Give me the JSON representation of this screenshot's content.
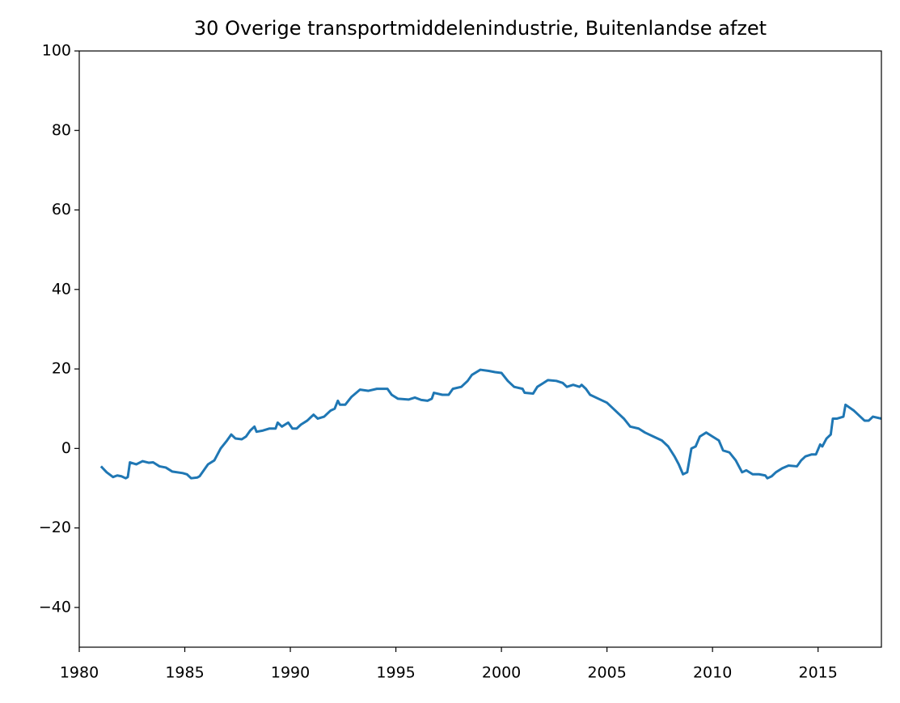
{
  "chart_data": {
    "type": "line",
    "title": "30 Overige transportmiddelenindustrie, Buitenlandse afzet",
    "x": [
      1981.03,
      1981.3,
      1981.6,
      1981.8,
      1982.0,
      1982.2,
      1982.3,
      1982.4,
      1982.7,
      1983.0,
      1983.3,
      1983.5,
      1983.8,
      1984.1,
      1984.4,
      1984.9,
      1985.1,
      1985.3,
      1985.6,
      1985.7,
      1985.9,
      1986.1,
      1986.4,
      1986.7,
      1987.0,
      1987.2,
      1987.4,
      1987.7,
      1987.9,
      1988.1,
      1988.3,
      1988.4,
      1988.7,
      1989.0,
      1989.3,
      1989.4,
      1989.6,
      1989.9,
      1990.1,
      1990.3,
      1990.5,
      1990.8,
      1991.0,
      1991.1,
      1991.3,
      1991.6,
      1991.9,
      1992.1,
      1992.25,
      1992.35,
      1992.6,
      1992.9,
      1993.3,
      1993.7,
      1994.1,
      1994.6,
      1994.8,
      1995.1,
      1995.6,
      1995.9,
      1996.2,
      1996.5,
      1996.7,
      1996.8,
      1997.2,
      1997.5,
      1997.7,
      1998.1,
      1998.4,
      1998.6,
      1999.0,
      1999.4,
      1999.7,
      2000.0,
      2000.3,
      2000.6,
      2001.0,
      2001.1,
      2001.5,
      2001.7,
      2002.0,
      2002.2,
      2002.6,
      2002.9,
      2003.1,
      2003.4,
      2003.7,
      2003.8,
      2004.0,
      2004.2,
      2004.6,
      2005.0,
      2005.3,
      2005.6,
      2005.8,
      2006.1,
      2006.5,
      2006.8,
      2007.2,
      2007.6,
      2007.9,
      2008.2,
      2008.4,
      2008.6,
      2008.8,
      2009.0,
      2009.2,
      2009.4,
      2009.7,
      2010.0,
      2010.3,
      2010.5,
      2010.8,
      2011.1,
      2011.4,
      2011.6,
      2011.9,
      2012.2,
      2012.5,
      2012.6,
      2012.8,
      2013.0,
      2013.3,
      2013.6,
      2014.0,
      2014.2,
      2014.4,
      2014.7,
      2014.9,
      2015.1,
      2015.2,
      2015.4,
      2015.6,
      2015.7,
      2015.9,
      2016.2,
      2016.3,
      2016.7,
      2016.9,
      2017.2,
      2017.4,
      2017.6,
      2018.0
    ],
    "series": [
      {
        "color": "#1f77b4",
        "values": [
          -4.5,
          -6,
          -7.2,
          -6.8,
          -7,
          -7.5,
          -7.2,
          -3.5,
          -4,
          -3.2,
          -3.6,
          -3.5,
          -4.5,
          -4.8,
          -5.8,
          -6.2,
          -6.5,
          -7.5,
          -7.3,
          -7,
          -5.5,
          -4,
          -3,
          0,
          2,
          3.5,
          2.5,
          2.3,
          3,
          4.5,
          5.5,
          4.2,
          4.5,
          5,
          5,
          6.5,
          5.5,
          6.5,
          5,
          5,
          6,
          7,
          8,
          8.5,
          7.5,
          8,
          9.5,
          10,
          12,
          11,
          11,
          13,
          14.8,
          14.5,
          15,
          15,
          13.5,
          12.5,
          12.3,
          12.8,
          12.2,
          12,
          12.5,
          14,
          13.5,
          13.5,
          15,
          15.5,
          17,
          18.5,
          19.8,
          19.5,
          19.2,
          19,
          17,
          15.5,
          15,
          14,
          13.8,
          15.5,
          16.5,
          17.2,
          17,
          16.5,
          15.5,
          16,
          15.5,
          16,
          15,
          13.5,
          12.5,
          11.5,
          10,
          8.5,
          7.5,
          5.5,
          5,
          4,
          3,
          2,
          0.5,
          -2,
          -4,
          -6.5,
          -6,
          0,
          0.5,
          3,
          4,
          3,
          2,
          -0.5,
          -1,
          -3,
          -6,
          -5.5,
          -6.5,
          -6.5,
          -6.8,
          -7.5,
          -7,
          -6,
          -5,
          -4.3,
          -4.5,
          -3,
          -2,
          -1.5,
          -1.5,
          1,
          0.5,
          2.5,
          3.5,
          7.5,
          7.5,
          8,
          11,
          9.5,
          8.5,
          7,
          7,
          8,
          7.5
        ]
      }
    ],
    "xlim": [
      1980,
      2018
    ],
    "xticks": [
      1980,
      1985,
      1990,
      1995,
      2000,
      2005,
      2010,
      2015
    ],
    "ylim": [
      -50,
      100
    ],
    "yticks": [
      {
        "value": -40,
        "label": "−40"
      },
      {
        "value": -20,
        "label": "−20"
      },
      0,
      20,
      40,
      60,
      80,
      100
    ]
  }
}
